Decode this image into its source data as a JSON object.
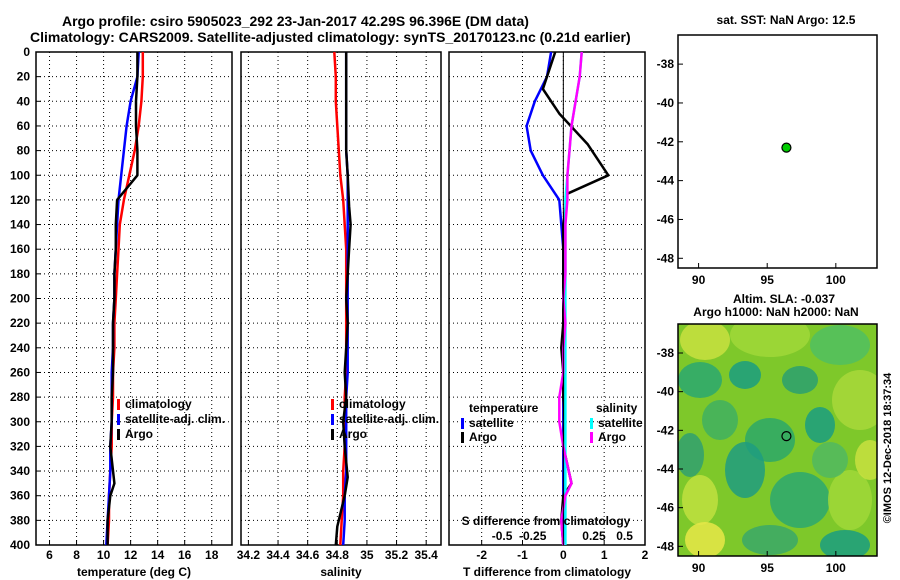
{
  "title": {
    "line1": "Argo profile: csiro 5905023_292 23-Jan-2017 42.29S 96.396E (DM data)",
    "line2": "Climatology: CARS2009. Satellite-adjusted climatology: synTS_20170123.nc (0.21d earlier)"
  },
  "colors": {
    "climatology": "#ff0000",
    "satellite": "#0000ff",
    "argo": "#000000",
    "sal_satellite": "#00ffff",
    "sal_argo": "#ff00ff",
    "marker": "#00cc00"
  },
  "chart_data": [
    {
      "type": "line",
      "id": "temperature",
      "xlabel": "temperature (deg C)",
      "ylabel": "depth",
      "xlim": [
        5,
        19.5
      ],
      "ylim": [
        0,
        400
      ],
      "x_ticks": [
        "6",
        "8",
        "10",
        "12",
        "14",
        "16",
        "18"
      ],
      "x_tick_values": [
        6,
        8,
        10,
        12,
        14,
        16,
        18
      ],
      "y_ticks": [
        "0",
        "20",
        "40",
        "60",
        "80",
        "100",
        "120",
        "140",
        "160",
        "180",
        "200",
        "220",
        "240",
        "260",
        "280",
        "300",
        "320",
        "340",
        "360",
        "380",
        "400"
      ],
      "legend": [
        "climatology",
        "satellite-adj. clim.",
        "Argo"
      ],
      "series": [
        {
          "name": "climatology",
          "color": "#ff0000",
          "x": [
            12.9,
            12.9,
            12.8,
            12.6,
            12.3,
            11.9,
            11.5,
            11.2,
            11.1,
            11.0,
            10.9,
            10.8,
            10.8,
            10.7,
            10.7,
            10.6,
            10.6,
            10.5,
            10.4,
            10.4,
            10.3
          ],
          "y": [
            0,
            20,
            40,
            60,
            80,
            100,
            120,
            140,
            160,
            180,
            200,
            220,
            240,
            260,
            280,
            300,
            320,
            340,
            360,
            380,
            400
          ]
        },
        {
          "name": "satellite-adj. clim.",
          "color": "#0000ff",
          "x": [
            12.6,
            12.5,
            12.0,
            11.7,
            11.5,
            11.3,
            11.1,
            11.0,
            10.9,
            10.8,
            10.8,
            10.7,
            10.7,
            10.6,
            10.6,
            10.6,
            10.5,
            10.5,
            10.4,
            10.3,
            10.2
          ],
          "y": [
            0,
            20,
            40,
            60,
            80,
            100,
            120,
            140,
            160,
            180,
            200,
            220,
            240,
            260,
            280,
            300,
            320,
            340,
            360,
            380,
            400
          ]
        },
        {
          "name": "Argo",
          "color": "#000000",
          "x": [
            12.5,
            12.5,
            12.4,
            12.4,
            12.5,
            12.5,
            11.0,
            10.9,
            10.9,
            10.8,
            10.8,
            10.7,
            10.7,
            10.7,
            10.6,
            10.6,
            10.5,
            10.8,
            10.5,
            10.3,
            10.3
          ],
          "y": [
            0,
            20,
            40,
            60,
            80,
            100,
            120,
            140,
            160,
            180,
            200,
            220,
            240,
            260,
            280,
            300,
            320,
            350,
            360,
            380,
            400
          ]
        }
      ]
    },
    {
      "type": "line",
      "id": "salinity",
      "xlabel": "salinity",
      "xlim": [
        34.15,
        35.5
      ],
      "ylim": [
        0,
        400
      ],
      "x_ticks": [
        "34.2",
        "34.4",
        "34.6",
        "34.8",
        "35",
        "35.2",
        "35.4"
      ],
      "x_tick_values": [
        34.2,
        34.4,
        34.6,
        34.8,
        35.0,
        35.2,
        35.4
      ],
      "legend": [
        "climatology",
        "satellite-adj. clim.",
        "Argo"
      ],
      "series": [
        {
          "name": "climatology",
          "color": "#ff0000",
          "x": [
            34.78,
            34.79,
            34.79,
            34.8,
            34.81,
            34.82,
            34.84,
            34.85,
            34.86,
            34.86,
            34.86,
            34.86,
            34.86,
            34.86,
            34.85,
            34.85,
            34.85,
            34.84,
            34.84,
            34.83,
            34.82
          ],
          "y": [
            0,
            20,
            40,
            60,
            80,
            100,
            120,
            140,
            160,
            180,
            200,
            220,
            240,
            260,
            280,
            300,
            320,
            340,
            360,
            380,
            400
          ]
        },
        {
          "name": "satellite-adj. clim.",
          "color": "#0000ff",
          "x": [
            34.86,
            34.86,
            34.86,
            34.86,
            34.86,
            34.87,
            34.87,
            34.87,
            34.87,
            34.87,
            34.87,
            34.87,
            34.87,
            34.87,
            34.86,
            34.86,
            34.86,
            34.86,
            34.85,
            34.85,
            34.84
          ],
          "y": [
            0,
            20,
            40,
            60,
            80,
            100,
            120,
            140,
            160,
            180,
            200,
            220,
            240,
            260,
            280,
            300,
            320,
            340,
            360,
            380,
            400
          ]
        },
        {
          "name": "Argo",
          "color": "#000000",
          "x": [
            34.86,
            34.86,
            34.86,
            34.86,
            34.86,
            34.87,
            34.88,
            34.89,
            34.88,
            34.87,
            34.86,
            34.87,
            34.86,
            34.85,
            34.86,
            34.84,
            34.85,
            34.87,
            34.85,
            34.8,
            34.79
          ],
          "y": [
            0,
            20,
            40,
            60,
            80,
            100,
            125,
            140,
            160,
            180,
            200,
            220,
            240,
            260,
            280,
            300,
            320,
            345,
            360,
            385,
            400
          ]
        }
      ]
    },
    {
      "type": "line",
      "id": "difference",
      "xlabel": "T difference from climatology",
      "top_label": "S difference from climatology",
      "xlim": [
        -2.8,
        2.0
      ],
      "ylim": [
        0,
        400
      ],
      "x_ticks": [
        "-2",
        "-1",
        "0",
        "1",
        "2"
      ],
      "x_tick_values": [
        -2,
        -1,
        0,
        1,
        2
      ],
      "top_ticks": [
        "-0.5",
        "-0.25",
        "0.25",
        "0.5"
      ],
      "top_tick_values": [
        -1.5,
        -0.75,
        0.75,
        1.5
      ],
      "legend_left_title": "temperature",
      "legend_right_title": "salinity",
      "legend": [
        "satellite",
        "Argo",
        "satellite",
        "Argo"
      ],
      "series": [
        {
          "name": "T satellite",
          "color": "#0000ff",
          "x": [
            -0.3,
            -0.4,
            -0.7,
            -0.9,
            -0.8,
            -0.5,
            -0.1,
            -0.05,
            0,
            0,
            0,
            0,
            0,
            0,
            0,
            0,
            0,
            0,
            0,
            0,
            0
          ],
          "y": [
            0,
            20,
            40,
            60,
            80,
            100,
            120,
            140,
            160,
            180,
            200,
            220,
            240,
            260,
            280,
            300,
            320,
            340,
            360,
            380,
            400
          ]
        },
        {
          "name": "T Argo",
          "color": "#000000",
          "x": [
            -0.2,
            -0.3,
            -0.5,
            -0.1,
            0.6,
            1.1,
            0.1,
            0.0,
            0.0,
            0.0,
            0.0,
            0.0,
            -0.05,
            0.0,
            0.0,
            0.05,
            0.0,
            0.2,
            0.0,
            -0.05,
            0.0
          ],
          "y": [
            0,
            10,
            30,
            50,
            75,
            100,
            115,
            140,
            160,
            180,
            200,
            220,
            240,
            260,
            280,
            300,
            320,
            350,
            360,
            380,
            400
          ]
        },
        {
          "name": "S satellite",
          "color": "#00ffff",
          "x": [
            0.45,
            0.4,
            0.3,
            0.2,
            0.15,
            0.1,
            0.05,
            0.05,
            0.05,
            0.05,
            0.05,
            0.05,
            0.05,
            0.05,
            0.05,
            0.05,
            0.05,
            0.05,
            0.05,
            0.05,
            0.05
          ],
          "y": [
            0,
            20,
            40,
            60,
            80,
            100,
            120,
            140,
            160,
            180,
            200,
            220,
            240,
            260,
            280,
            300,
            320,
            340,
            360,
            380,
            400
          ]
        },
        {
          "name": "S Argo",
          "color": "#ff00ff",
          "x": [
            0.45,
            0.4,
            0.3,
            0.2,
            0.15,
            0.1,
            0.1,
            0.05,
            0.05,
            0.05,
            0.0,
            0.05,
            0.0,
            0.0,
            -0.1,
            -0.1,
            0.0,
            0.2,
            0.05,
            -0.05,
            0.0
          ],
          "y": [
            0,
            20,
            40,
            60,
            80,
            100,
            120,
            140,
            160,
            180,
            200,
            220,
            240,
            260,
            280,
            300,
            320,
            350,
            360,
            380,
            400
          ]
        }
      ]
    },
    {
      "type": "scatter",
      "id": "sst_map",
      "title": "sat. SST: NaN Argo: 12.5",
      "xlim": [
        88.5,
        103
      ],
      "ylim": [
        -48.5,
        -36.5
      ],
      "x_ticks": [
        "90",
        "95",
        "100"
      ],
      "x_tick_values": [
        90,
        95,
        100
      ],
      "y_ticks": [
        "-38",
        "-40",
        "-42",
        "-44",
        "-46",
        "-48"
      ],
      "y_tick_values": [
        -38,
        -40,
        -42,
        -44,
        -46,
        -48
      ],
      "points": [
        {
          "lon": 96.4,
          "lat": -42.3
        }
      ]
    },
    {
      "type": "heatmap",
      "id": "sla_map",
      "title_line1": "Altim. SLA: -0.037",
      "title_line2": "Argo h1000: NaN h2000: NaN",
      "xlim": [
        88.5,
        103
      ],
      "ylim": [
        -48.5,
        -36.5
      ],
      "x_ticks": [
        "90",
        "95",
        "100"
      ],
      "x_tick_values": [
        90,
        95,
        100
      ],
      "y_ticks": [
        "-38",
        "-40",
        "-42",
        "-44",
        "-46",
        "-48"
      ],
      "y_tick_values": [
        -38,
        -40,
        -42,
        -44,
        -46,
        -48
      ],
      "points": [
        {
          "lon": 96.4,
          "lat": -42.3
        }
      ]
    }
  ],
  "credit": "©IMOS 12-Dec-2018 18:37:34"
}
